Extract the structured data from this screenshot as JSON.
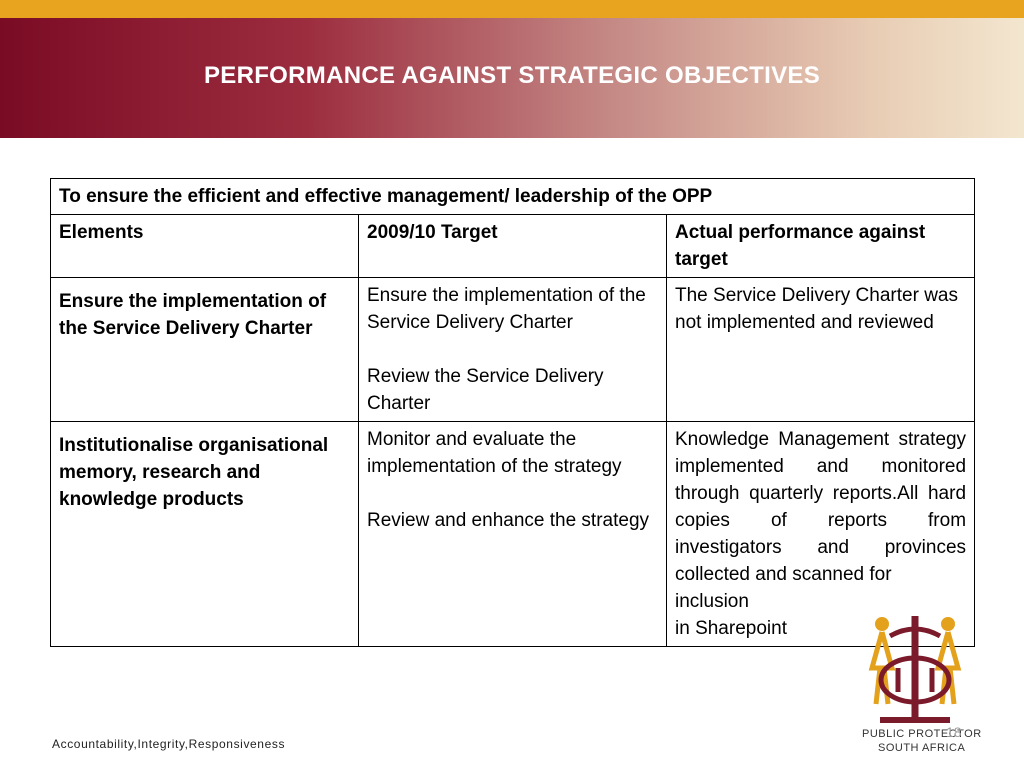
{
  "slide": {
    "title": "PERFORMANCE AGAINST STRATEGIC OBJECTIVES",
    "footer": "Accountability,Integrity,Responsiveness",
    "page_number": "18",
    "logo_line1": "PUBLIC PROTECTOR",
    "logo_line2": "SOUTH AFRICA",
    "colors": {
      "top_stripe": "#e8a41f",
      "band_start": "#7a0b24",
      "band_end": "#f3e6cf"
    }
  },
  "table": {
    "objective": "To ensure the efficient and effective management/ leadership of the OPP",
    "headers": [
      "Elements",
      "2009/10 Target",
      "Actual performance against target"
    ],
    "rows": [
      {
        "element": "Ensure the implementation of the Service Delivery Charter",
        "target_1": "Ensure the implementation of the Service Delivery Charter",
        "target_2": "Review the Service Delivery Charter",
        "actual": "The Service Delivery Charter was not implemented and reviewed"
      },
      {
        "element": "Institutionalise organisational memory, research and knowledge products",
        "target_1": "Monitor and evaluate the implementation of the strategy",
        "target_2": "Review and enhance the strategy",
        "actual_1": "Knowledge Management strategy implemented and monitored through quarterly reports.All  hard copies of reports from investigators and provinces collected and scanned for",
        "actual_2": "inclusion",
        "actual_3": "in Sharepoint"
      }
    ]
  }
}
